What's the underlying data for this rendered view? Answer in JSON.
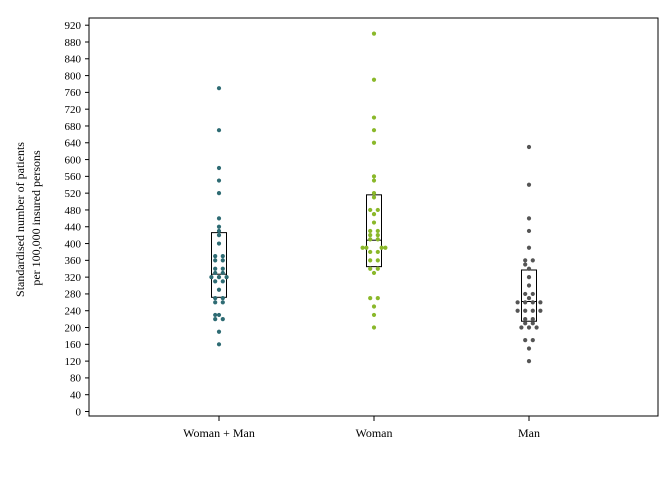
{
  "chart_data": {
    "type": "scatter",
    "subtype": "strip-plot-with-boxplot",
    "title": "",
    "xlabel": "",
    "ylabel_lines": [
      "Standardised number of patients",
      "per 100,000 insured persons"
    ],
    "ylim": [
      0,
      920
    ],
    "yticks": [
      0,
      40,
      80,
      120,
      160,
      200,
      240,
      280,
      320,
      360,
      400,
      440,
      480,
      520,
      560,
      600,
      640,
      680,
      720,
      760,
      800,
      840,
      880,
      920
    ],
    "grid": false,
    "legend": "none",
    "categories": [
      "Woman + Man",
      "Woman",
      "Man"
    ],
    "series": [
      {
        "category": "Woman + Man",
        "color": "#2e6b73",
        "box": {
          "q1": 272,
          "median": 327,
          "q3": 426
        },
        "points": [
          {
            "dx": 0,
            "y": 770
          },
          {
            "dx": 0,
            "y": 670
          },
          {
            "dx": 0,
            "y": 580
          },
          {
            "dx": 0,
            "y": 550
          },
          {
            "dx": 0,
            "y": 520
          },
          {
            "dx": 0,
            "y": 460
          },
          {
            "dx": 0,
            "y": 440
          },
          {
            "dx": 0,
            "y": 430
          },
          {
            "dx": 0,
            "y": 420
          },
          {
            "dx": 0,
            "y": 400
          },
          {
            "dx": -1,
            "y": 370
          },
          {
            "dx": 1,
            "y": 370
          },
          {
            "dx": -1,
            "y": 360
          },
          {
            "dx": 1,
            "y": 360
          },
          {
            "dx": -1,
            "y": 340
          },
          {
            "dx": 1,
            "y": 340
          },
          {
            "dx": -1,
            "y": 330
          },
          {
            "dx": 1,
            "y": 330
          },
          {
            "dx": -2,
            "y": 320
          },
          {
            "dx": 0,
            "y": 320
          },
          {
            "dx": 2,
            "y": 320
          },
          {
            "dx": -1,
            "y": 310
          },
          {
            "dx": 1,
            "y": 310
          },
          {
            "dx": 0,
            "y": 290
          },
          {
            "dx": -1,
            "y": 270
          },
          {
            "dx": 1,
            "y": 270
          },
          {
            "dx": -1,
            "y": 260
          },
          {
            "dx": 1,
            "y": 260
          },
          {
            "dx": -1,
            "y": 230
          },
          {
            "dx": 0,
            "y": 230
          },
          {
            "dx": -1,
            "y": 220
          },
          {
            "dx": 1,
            "y": 220
          },
          {
            "dx": 0,
            "y": 190
          },
          {
            "dx": 0,
            "y": 160
          }
        ]
      },
      {
        "category": "Woman",
        "color": "#8ab82a",
        "box": {
          "q1": 345,
          "median": 408,
          "q3": 516
        },
        "points": [
          {
            "dx": 0,
            "y": 900
          },
          {
            "dx": 0,
            "y": 790
          },
          {
            "dx": 0,
            "y": 700
          },
          {
            "dx": 0,
            "y": 670
          },
          {
            "dx": 0,
            "y": 640
          },
          {
            "dx": 0,
            "y": 560
          },
          {
            "dx": 0,
            "y": 550
          },
          {
            "dx": 0,
            "y": 520
          },
          {
            "dx": 0,
            "y": 510
          },
          {
            "dx": -1,
            "y": 480
          },
          {
            "dx": 1,
            "y": 480
          },
          {
            "dx": 0,
            "y": 470
          },
          {
            "dx": 0,
            "y": 450
          },
          {
            "dx": -1,
            "y": 430
          },
          {
            "dx": 1,
            "y": 430
          },
          {
            "dx": -1,
            "y": 420
          },
          {
            "dx": 1,
            "y": 420
          },
          {
            "dx": -1,
            "y": 410
          },
          {
            "dx": 1,
            "y": 410
          },
          {
            "dx": -3,
            "y": 390
          },
          {
            "dx": -2,
            "y": 390
          },
          {
            "dx": 2,
            "y": 390
          },
          {
            "dx": 3,
            "y": 390
          },
          {
            "dx": -1,
            "y": 380
          },
          {
            "dx": 1,
            "y": 380
          },
          {
            "dx": -1,
            "y": 360
          },
          {
            "dx": 1,
            "y": 360
          },
          {
            "dx": -1,
            "y": 340
          },
          {
            "dx": 1,
            "y": 340
          },
          {
            "dx": 0,
            "y": 330
          },
          {
            "dx": -1,
            "y": 270
          },
          {
            "dx": 1,
            "y": 270
          },
          {
            "dx": 0,
            "y": 250
          },
          {
            "dx": 0,
            "y": 230
          },
          {
            "dx": 0,
            "y": 200
          }
        ]
      },
      {
        "category": "Man",
        "color": "#555555",
        "box": {
          "q1": 215,
          "median": 262,
          "q3": 337
        },
        "points": [
          {
            "dx": 0,
            "y": 630
          },
          {
            "dx": 0,
            "y": 540
          },
          {
            "dx": 0,
            "y": 460
          },
          {
            "dx": 0,
            "y": 430
          },
          {
            "dx": 0,
            "y": 390
          },
          {
            "dx": -1,
            "y": 360
          },
          {
            "dx": 1,
            "y": 360
          },
          {
            "dx": -1,
            "y": 350
          },
          {
            "dx": 0,
            "y": 340
          },
          {
            "dx": 0,
            "y": 320
          },
          {
            "dx": 0,
            "y": 300
          },
          {
            "dx": -1,
            "y": 280
          },
          {
            "dx": 1,
            "y": 280
          },
          {
            "dx": 0,
            "y": 270
          },
          {
            "dx": -3,
            "y": 260
          },
          {
            "dx": -1,
            "y": 260
          },
          {
            "dx": 1,
            "y": 260
          },
          {
            "dx": 3,
            "y": 260
          },
          {
            "dx": -3,
            "y": 240
          },
          {
            "dx": -1,
            "y": 240
          },
          {
            "dx": 1,
            "y": 240
          },
          {
            "dx": 3,
            "y": 240
          },
          {
            "dx": -1,
            "y": 220
          },
          {
            "dx": 1,
            "y": 220
          },
          {
            "dx": -1,
            "y": 210
          },
          {
            "dx": 1,
            "y": 210
          },
          {
            "dx": -2,
            "y": 200
          },
          {
            "dx": 0,
            "y": 200
          },
          {
            "dx": 2,
            "y": 200
          },
          {
            "dx": -1,
            "y": 170
          },
          {
            "dx": 1,
            "y": 170
          },
          {
            "dx": 0,
            "y": 150
          },
          {
            "dx": 0,
            "y": 120
          }
        ]
      }
    ]
  }
}
